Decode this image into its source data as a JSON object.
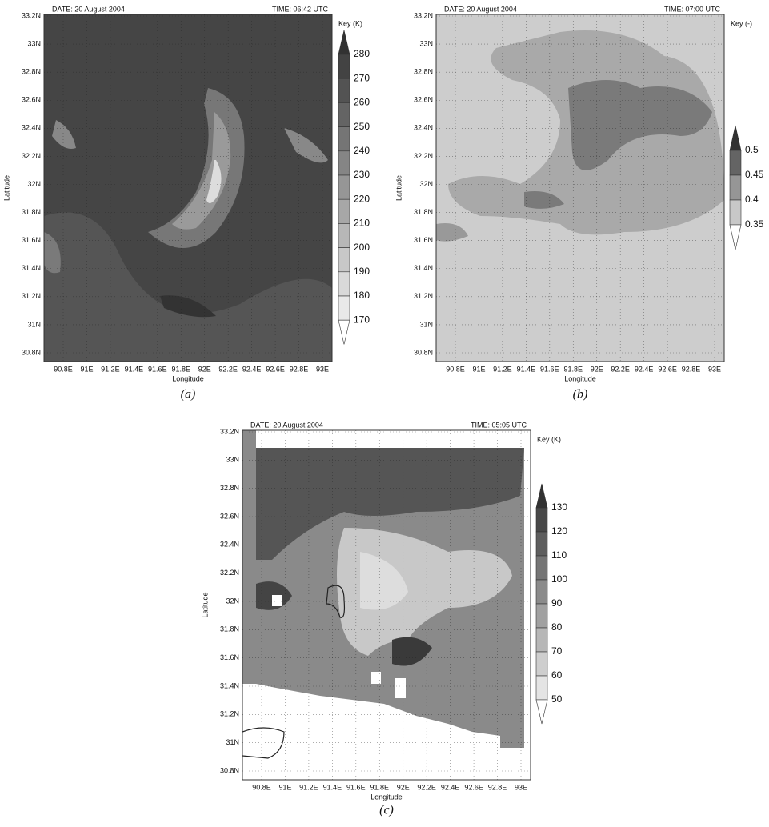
{
  "panels": [
    {
      "date": "DATE: 20 August 2004",
      "time": "TIME: 06:42 UTC",
      "key_title": "Key (K)",
      "key_levels": [
        "280",
        "270",
        "260",
        "250",
        "240",
        "230",
        "220",
        "210",
        "200",
        "190",
        "180",
        "170"
      ],
      "x_label": "Longitude",
      "y_label": "Latitude",
      "xticks": [
        "90.8E",
        "91E",
        "91.2E",
        "91.4E",
        "91.6E",
        "91.8E",
        "92E",
        "92.2E",
        "92.4E",
        "92.6E",
        "92.8E",
        "93E"
      ],
      "yticks": [
        "33.2N",
        "33N",
        "32.8N",
        "32.6N",
        "32.4N",
        "32.2N",
        "32N",
        "31.8N",
        "31.6N",
        "31.4N",
        "31.2N",
        "31N",
        "30.8N"
      ],
      "caption": "(a)"
    },
    {
      "date": "DATE: 20 August 2004",
      "time": "TIME: 07:00 UTC",
      "key_title": "Key (-)",
      "key_levels": [
        "0.5",
        "0.45",
        "0.4",
        "0.35"
      ],
      "x_label": "Longitude",
      "y_label": "Latitude",
      "xticks": [
        "90.8E",
        "91E",
        "91.2E",
        "91.4E",
        "91.6E",
        "91.8E",
        "92E",
        "92.2E",
        "92.4E",
        "92.6E",
        "92.8E",
        "93E"
      ],
      "yticks": [
        "33.2N",
        "33N",
        "32.8N",
        "32.6N",
        "32.4N",
        "32.2N",
        "32N",
        "31.8N",
        "31.6N",
        "31.4N",
        "31.2N",
        "31N",
        "30.8N"
      ],
      "caption": "(b)"
    },
    {
      "date": "DATE: 20 August 2004",
      "time": "TIME: 05:05 UTC",
      "key_title": "Key (K)",
      "key_levels": [
        "130",
        "120",
        "110",
        "100",
        "90",
        "80",
        "70",
        "60",
        "50"
      ],
      "x_label": "Longitude",
      "y_label": "Latitude",
      "xticks": [
        "90.8E",
        "91E",
        "91.2E",
        "91.4E",
        "91.6E",
        "91.8E",
        "92E",
        "92.2E",
        "92.4E",
        "92.6E",
        "92.8E",
        "93E"
      ],
      "yticks": [
        "33.2N",
        "33N",
        "32.8N",
        "32.6N",
        "32.4N",
        "32.2N",
        "32N",
        "31.8N",
        "31.6N",
        "31.4N",
        "31.2N",
        "31N",
        "30.8N"
      ],
      "caption": "(c)"
    }
  ]
}
